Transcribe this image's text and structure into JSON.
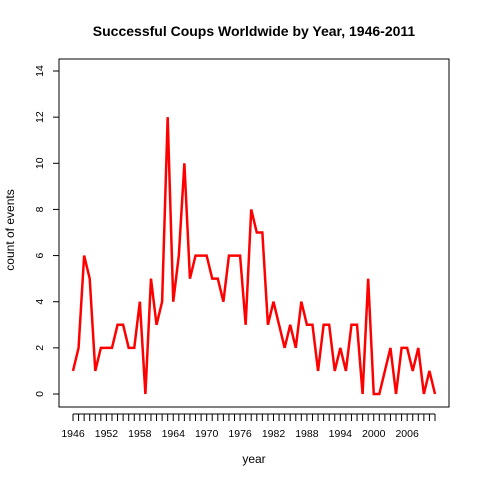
{
  "chart_data": {
    "type": "line",
    "title": "Successful Coups Worldwide by Year, 1946-2011",
    "xlabel": "year",
    "ylabel": "count of events",
    "x_start": 1946,
    "x_end": 2011,
    "ylim": [
      0,
      14
    ],
    "y_ticks": [
      0,
      2,
      4,
      6,
      8,
      10,
      12,
      14
    ],
    "x_tick_labels": [
      "1946",
      "1952",
      "1958",
      "1964",
      "1970",
      "1976",
      "1982",
      "1988",
      "1994",
      "2000",
      "2006"
    ],
    "grid": false,
    "legend": "none",
    "series": [
      {
        "color": "#ff0000",
        "values": [
          1,
          2,
          6,
          5,
          1,
          2,
          2,
          2,
          3,
          3,
          2,
          2,
          4,
          0,
          5,
          3,
          4,
          12,
          4,
          6,
          10,
          5,
          6,
          6,
          6,
          5,
          5,
          4,
          6,
          6,
          6,
          3,
          8,
          7,
          7,
          3,
          4,
          3,
          2,
          3,
          2,
          4,
          3,
          3,
          1,
          3,
          3,
          1,
          2,
          1,
          3,
          3,
          0,
          5,
          0,
          0,
          1,
          2,
          0,
          2,
          2,
          1,
          2,
          0,
          1,
          0
        ]
      }
    ]
  }
}
